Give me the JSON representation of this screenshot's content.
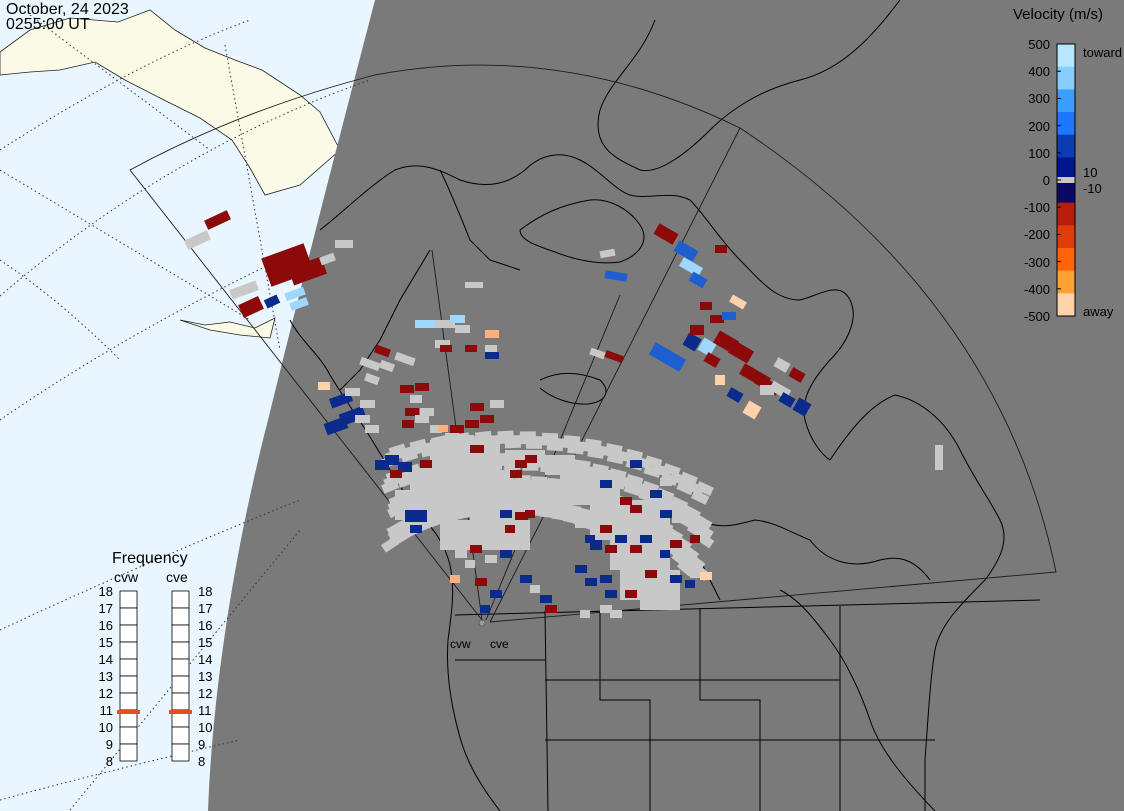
{
  "header": {
    "date": "October, 24 2023",
    "time": "0255:00 UT"
  },
  "velocity_scale": {
    "title": "Velocity (m/s)",
    "ticks": [
      "500",
      "400",
      "300",
      "200",
      "100",
      "0",
      "-100",
      "-200",
      "-300",
      "-400",
      "-500"
    ],
    "toward_label": "toward",
    "away_label": "away",
    "threshold_pos_label": "10",
    "threshold_neg_label": "-10",
    "colors": [
      "#b9e6ff",
      "#87ceff",
      "#3c9eff",
      "#1e78ff",
      "#0a3cb4",
      "#00148c",
      "#0a0a64",
      "#b41e0a",
      "#e03c0a",
      "#ff640a",
      "#ffa032",
      "#ffd2aa"
    ],
    "ground_scatter_color": "#c8c8c8"
  },
  "frequency": {
    "title": "Frequency",
    "radars": [
      "cvw",
      "cve"
    ],
    "ticks": [
      "18",
      "17",
      "16",
      "15",
      "14",
      "13",
      "12",
      "11",
      "10",
      "9",
      "8"
    ],
    "cvw_freq_mhz": 11,
    "cve_freq_mhz": 11,
    "marker_color": "#e05020"
  },
  "map": {
    "radar_sites": [
      "cvw",
      "cve"
    ],
    "night_color": "#7a7a7a",
    "day_ocean_color": "#eaf6ff",
    "day_land_color": "#fbfae6"
  }
}
